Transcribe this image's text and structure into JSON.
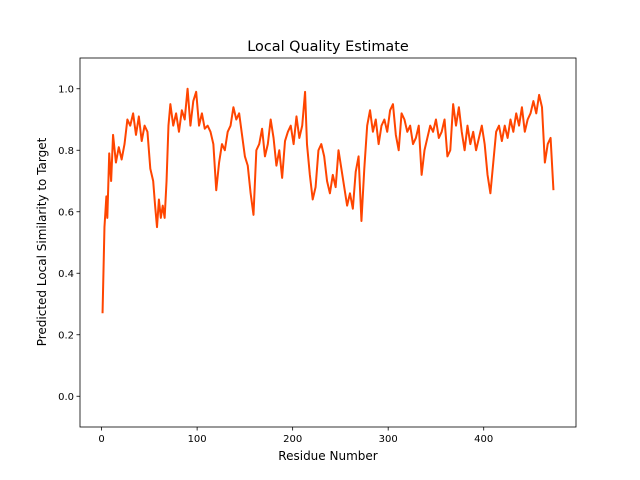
{
  "chart_data": {
    "type": "line",
    "title": "Local Quality Estimate",
    "x_label": "Residue Number",
    "y_label": "Predicted Local Similarity to Target",
    "xlim": [
      -22.6,
      496.6
    ],
    "ylim": [
      -0.1,
      1.1
    ],
    "xticks": [
      0,
      100,
      200,
      300,
      400
    ],
    "yticks": [
      {
        "value": 0,
        "label": "0.0"
      },
      0.2,
      0.4,
      0.6,
      0.8,
      {
        "value": 1,
        "label": "1.0"
      }
    ],
    "series": [
      {
        "color": "#ff4500",
        "x": [
          1,
          3,
          5,
          6,
          8,
          10,
          12,
          15,
          18,
          21,
          24,
          27,
          30,
          33,
          36,
          39,
          42,
          45,
          48,
          51,
          54,
          56,
          58,
          60,
          62,
          64,
          66,
          68,
          70,
          72,
          75,
          78,
          81,
          84,
          87,
          90,
          93,
          96,
          99,
          102,
          105,
          108,
          111,
          114,
          117,
          120,
          123,
          126,
          129,
          132,
          135,
          138,
          141,
          144,
          147,
          150,
          153,
          156,
          159,
          162,
          165,
          168,
          171,
          174,
          177,
          180,
          183,
          186,
          189,
          192,
          195,
          198,
          201,
          204,
          207,
          210,
          213,
          215,
          218,
          221,
          224,
          227,
          230,
          233,
          236,
          239,
          242,
          245,
          248,
          251,
          254,
          257,
          260,
          263,
          266,
          269,
          272,
          275,
          278,
          281,
          284,
          287,
          290,
          293,
          296,
          299,
          302,
          305,
          308,
          311,
          314,
          317,
          320,
          323,
          326,
          329,
          332,
          335,
          338,
          341,
          344,
          347,
          350,
          353,
          356,
          359,
          362,
          365,
          368,
          371,
          374,
          377,
          380,
          383,
          386,
          389,
          392,
          395,
          398,
          401,
          404,
          407,
          410,
          413,
          416,
          419,
          422,
          425,
          428,
          431,
          434,
          437,
          440,
          443,
          446,
          449,
          452,
          455,
          458,
          461,
          464,
          467,
          470,
          473
        ],
        "values": [
          0.27,
          0.55,
          0.65,
          0.58,
          0.79,
          0.7,
          0.85,
          0.76,
          0.81,
          0.77,
          0.82,
          0.9,
          0.88,
          0.92,
          0.85,
          0.91,
          0.83,
          0.88,
          0.86,
          0.74,
          0.7,
          0.62,
          0.55,
          0.64,
          0.58,
          0.62,
          0.58,
          0.7,
          0.88,
          0.95,
          0.88,
          0.92,
          0.86,
          0.93,
          0.9,
          1.0,
          0.88,
          0.96,
          0.99,
          0.88,
          0.92,
          0.87,
          0.88,
          0.86,
          0.82,
          0.67,
          0.76,
          0.82,
          0.8,
          0.86,
          0.88,
          0.94,
          0.9,
          0.92,
          0.85,
          0.78,
          0.75,
          0.66,
          0.59,
          0.8,
          0.82,
          0.87,
          0.78,
          0.82,
          0.9,
          0.84,
          0.75,
          0.8,
          0.71,
          0.83,
          0.86,
          0.88,
          0.82,
          0.91,
          0.84,
          0.88,
          0.99,
          0.82,
          0.72,
          0.64,
          0.68,
          0.8,
          0.82,
          0.78,
          0.7,
          0.66,
          0.72,
          0.68,
          0.8,
          0.74,
          0.68,
          0.62,
          0.66,
          0.61,
          0.73,
          0.78,
          0.57,
          0.74,
          0.88,
          0.93,
          0.86,
          0.9,
          0.82,
          0.88,
          0.9,
          0.86,
          0.93,
          0.95,
          0.85,
          0.8,
          0.92,
          0.9,
          0.86,
          0.88,
          0.82,
          0.84,
          0.88,
          0.72,
          0.8,
          0.84,
          0.88,
          0.86,
          0.9,
          0.84,
          0.86,
          0.9,
          0.78,
          0.8,
          0.95,
          0.88,
          0.94,
          0.86,
          0.8,
          0.88,
          0.82,
          0.86,
          0.8,
          0.84,
          0.88,
          0.82,
          0.72,
          0.66,
          0.76,
          0.86,
          0.88,
          0.83,
          0.88,
          0.84,
          0.9,
          0.86,
          0.92,
          0.88,
          0.94,
          0.86,
          0.9,
          0.92,
          0.96,
          0.92,
          0.98,
          0.94,
          0.76,
          0.82,
          0.84,
          0.67
        ]
      }
    ]
  }
}
